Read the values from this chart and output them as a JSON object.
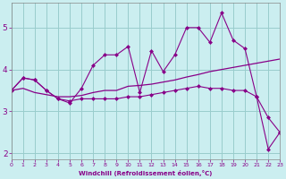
{
  "xlabel": "Windchill (Refroidissement éolien,°C)",
  "bg_color": "#cbeef0",
  "grid_color": "#99cccc",
  "line_color": "#880088",
  "x": [
    0,
    1,
    2,
    3,
    4,
    5,
    6,
    7,
    8,
    9,
    10,
    11,
    12,
    13,
    14,
    15,
    16,
    17,
    18,
    19,
    20,
    21,
    22,
    23
  ],
  "series1": [
    3.5,
    3.8,
    3.75,
    3.5,
    3.3,
    3.2,
    3.55,
    4.1,
    4.35,
    4.35,
    4.55,
    3.45,
    4.45,
    3.95,
    4.35,
    5.0,
    5.0,
    4.65,
    5.35,
    4.7,
    4.5,
    3.35,
    2.85,
    2.5
  ],
  "series2": [
    3.5,
    3.8,
    3.75,
    3.5,
    3.3,
    3.25,
    3.3,
    3.3,
    3.3,
    3.3,
    3.35,
    3.35,
    3.4,
    3.45,
    3.5,
    3.55,
    3.6,
    3.55,
    3.55,
    3.5,
    3.5,
    3.35,
    2.1,
    2.5
  ],
  "series3": [
    3.5,
    3.55,
    3.45,
    3.4,
    3.35,
    3.35,
    3.38,
    3.45,
    3.5,
    3.5,
    3.6,
    3.62,
    3.65,
    3.7,
    3.75,
    3.82,
    3.88,
    3.95,
    4.0,
    4.05,
    4.1,
    4.15,
    4.2,
    4.25
  ],
  "xlim": [
    0,
    23
  ],
  "ylim": [
    1.85,
    5.6
  ],
  "yticks": [
    2,
    3,
    4,
    5
  ],
  "xticks": [
    0,
    1,
    2,
    3,
    4,
    5,
    6,
    7,
    8,
    9,
    10,
    11,
    12,
    13,
    14,
    15,
    16,
    17,
    18,
    19,
    20,
    21,
    22,
    23
  ]
}
